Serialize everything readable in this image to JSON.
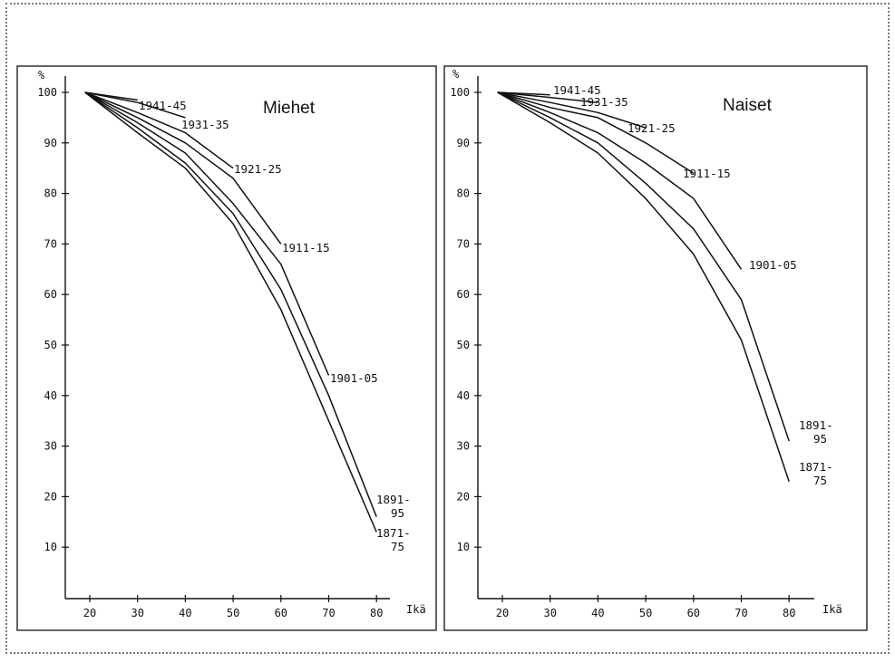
{
  "chart_data": [
    {
      "type": "line",
      "title": "Miehet",
      "xlabel": "Ikä",
      "ylabel": "%",
      "xlim": [
        15,
        82
      ],
      "ylim": [
        0,
        100
      ],
      "x_ticks": [
        "20",
        "30",
        "40",
        "50",
        "60",
        "70",
        "80"
      ],
      "y_ticks": [
        "10",
        "20",
        "30",
        "40",
        "50",
        "60",
        "70",
        "80",
        "90",
        "100"
      ],
      "grid": false,
      "legend": "inline labels at line ends",
      "series": [
        {
          "name": "1941-45",
          "x": [
            19,
            30
          ],
          "y": [
            100,
            98.5
          ]
        },
        {
          "name": "1931-35",
          "x": [
            19,
            30,
            40
          ],
          "y": [
            100,
            98,
            95
          ]
        },
        {
          "name": "1921-25",
          "x": [
            19,
            30,
            40,
            50
          ],
          "y": [
            100,
            96,
            92,
            85
          ]
        },
        {
          "name": "1911-15",
          "x": [
            19,
            30,
            40,
            50,
            60
          ],
          "y": [
            100,
            95,
            90,
            83,
            70
          ]
        },
        {
          "name": "1901-05",
          "x": [
            19,
            30,
            40,
            50,
            60,
            70
          ],
          "y": [
            100,
            94,
            88,
            78,
            66,
            44
          ]
        },
        {
          "name": "1891-\n95",
          "x": [
            19,
            30,
            40,
            50,
            60,
            70,
            80
          ],
          "y": [
            100,
            93,
            86,
            76,
            61,
            40,
            16
          ]
        },
        {
          "name": "1871-\n75",
          "x": [
            19,
            30,
            40,
            50,
            60,
            70,
            80
          ],
          "y": [
            100,
            92,
            85,
            74,
            57,
            35,
            13
          ]
        }
      ]
    },
    {
      "type": "line",
      "title": "Naiset",
      "xlabel": "Ikä",
      "ylabel": "%",
      "xlim": [
        15,
        82
      ],
      "ylim": [
        0,
        100
      ],
      "x_ticks": [
        "20",
        "30",
        "40",
        "50",
        "60",
        "70",
        "80"
      ],
      "y_ticks": [
        "10",
        "20",
        "30",
        "40",
        "50",
        "60",
        "70",
        "80",
        "90",
        "100"
      ],
      "grid": false,
      "legend": "inline labels at line ends",
      "series": [
        {
          "name": "1941-45",
          "x": [
            19,
            30
          ],
          "y": [
            100,
            99.5
          ]
        },
        {
          "name": "1931-35",
          "x": [
            19,
            30,
            40
          ],
          "y": [
            100,
            99,
            98
          ]
        },
        {
          "name": "1921-25",
          "x": [
            19,
            30,
            40,
            50
          ],
          "y": [
            100,
            98,
            96,
            93
          ]
        },
        {
          "name": "1911-15",
          "x": [
            19,
            30,
            40,
            50,
            60
          ],
          "y": [
            100,
            97,
            95,
            90,
            84
          ]
        },
        {
          "name": "1901-05",
          "x": [
            19,
            30,
            40,
            50,
            60,
            70
          ],
          "y": [
            100,
            96,
            92,
            86,
            79,
            65
          ]
        },
        {
          "name": "1891-\n95",
          "x": [
            19,
            30,
            40,
            50,
            60,
            70,
            80
          ],
          "y": [
            100,
            95,
            90,
            82,
            73,
            59,
            31
          ]
        },
        {
          "name": "1871-\n75",
          "x": [
            19,
            30,
            40,
            50,
            60,
            70,
            80
          ],
          "y": [
            100,
            94,
            88,
            79,
            68,
            51,
            23
          ]
        }
      ]
    }
  ]
}
